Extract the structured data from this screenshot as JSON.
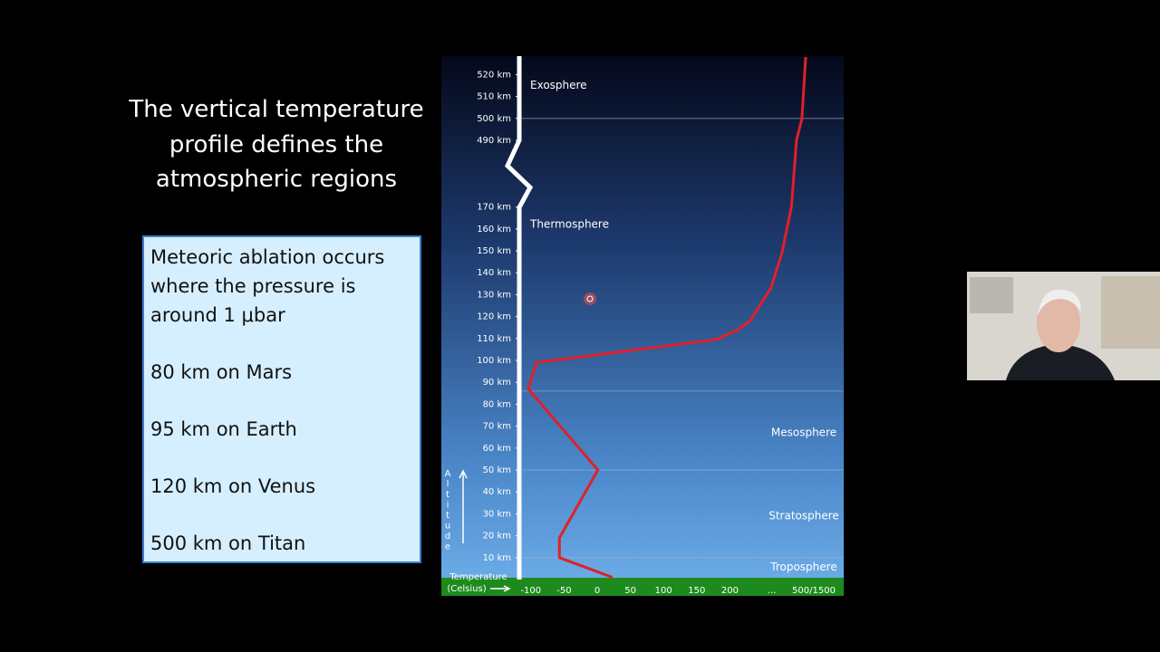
{
  "slide": {
    "title_lines": [
      "The vertical temperature",
      "profile defines the",
      "atmospheric regions"
    ],
    "box_lines": [
      "Meteoric ablation occurs",
      "where the pressure is",
      "around 1 μbar",
      "80 km on Mars",
      "95 km on Earth",
      "120 km on Venus",
      "500 km on Titan"
    ]
  },
  "chart_data": {
    "type": "line",
    "color": "#e0202a",
    "x": [
      23,
      -57,
      -57,
      1,
      -104,
      -92,
      179,
      278,
      391,
      591,
      696,
      787,
      835,
      887,
      922
    ],
    "values": [
      1,
      10,
      19,
      50,
      87,
      99,
      109.5,
      114,
      118,
      133,
      149,
      170,
      490,
      500,
      528
    ],
    "y_break": [
      170,
      490
    ],
    "x_break": [
      200,
      1000
    ],
    "yticks": [
      {
        "value": 10,
        "label": "10 km"
      },
      {
        "value": 20,
        "label": "20 km"
      },
      {
        "value": 30,
        "label": "30 km"
      },
      {
        "value": 40,
        "label": "40 km"
      },
      {
        "value": 50,
        "label": "50 km"
      },
      {
        "value": 60,
        "label": "60 km"
      },
      {
        "value": 70,
        "label": "70 km"
      },
      {
        "value": 80,
        "label": "80 km"
      },
      {
        "value": 90,
        "label": "90 km"
      },
      {
        "value": 100,
        "label": "100 km"
      },
      {
        "value": 110,
        "label": "110 km"
      },
      {
        "value": 120,
        "label": "120 km"
      },
      {
        "value": 130,
        "label": "130 km"
      },
      {
        "value": 140,
        "label": "140 km"
      },
      {
        "value": 150,
        "label": "150 km"
      },
      {
        "value": 160,
        "label": "160 km"
      },
      {
        "value": 170,
        "label": "170 km"
      },
      {
        "value": 490,
        "label": "490 km"
      },
      {
        "value": 500,
        "label": "500 km"
      },
      {
        "value": 510,
        "label": "510 km"
      },
      {
        "value": 520,
        "label": "520 km"
      }
    ],
    "xticks": [
      -100,
      -50,
      0,
      50,
      100,
      150,
      200,
      {
        "value": 600,
        "label": "..."
      },
      {
        "value": 1000,
        "label": "500/1500"
      }
    ],
    "layer_boundaries": [
      500,
      86,
      50,
      10
    ],
    "regions": [
      {
        "label": "Exosphere",
        "altitude": 515,
        "side": "left"
      },
      {
        "label": "Thermosphere",
        "altitude": 162,
        "side": "left"
      },
      {
        "label": "Mesosphere",
        "altitude": 67,
        "side": "right"
      },
      {
        "label": "Stratosphere",
        "altitude": 29,
        "side": "right"
      },
      {
        "label": "Troposphere",
        "altitude": 5.5,
        "side": "right"
      }
    ],
    "y_label": "Altitude",
    "x_label_lines": [
      "Temperature",
      "(Celsius)"
    ]
  }
}
